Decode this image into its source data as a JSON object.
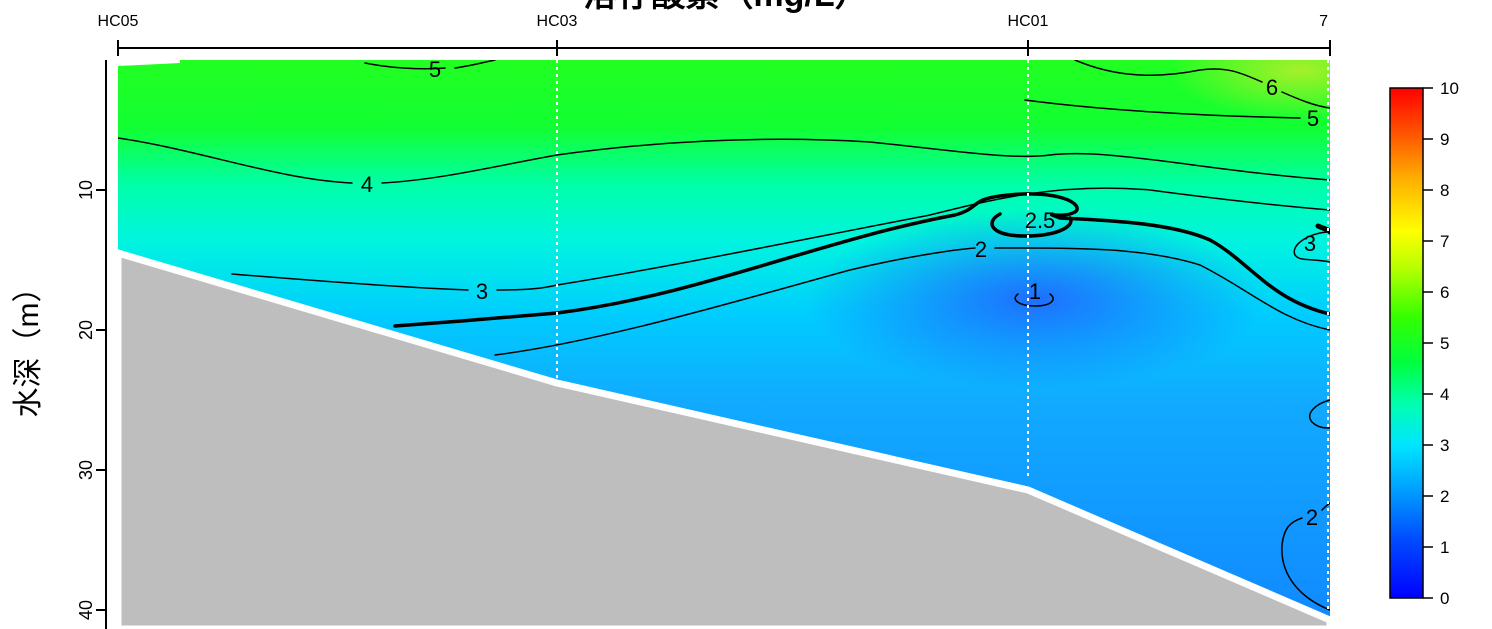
{
  "chart_data": {
    "type": "heatmap",
    "title": "溶存酸素（mg/L）",
    "ylabel": "水深（m）",
    "stations": [
      "HC05",
      "HC03",
      "HC01",
      "7"
    ],
    "yticks": [
      10,
      20,
      30,
      40
    ],
    "ylim": [
      0,
      40
    ],
    "colorbar": {
      "ticks": [
        0,
        1,
        2,
        3,
        4,
        5,
        6,
        7,
        8,
        9,
        10
      ],
      "range": [
        0,
        10
      ]
    },
    "contour_labels": [
      "5",
      "4",
      "3",
      "2",
      "1",
      "2.5",
      "6",
      "5",
      "3",
      "2"
    ]
  }
}
